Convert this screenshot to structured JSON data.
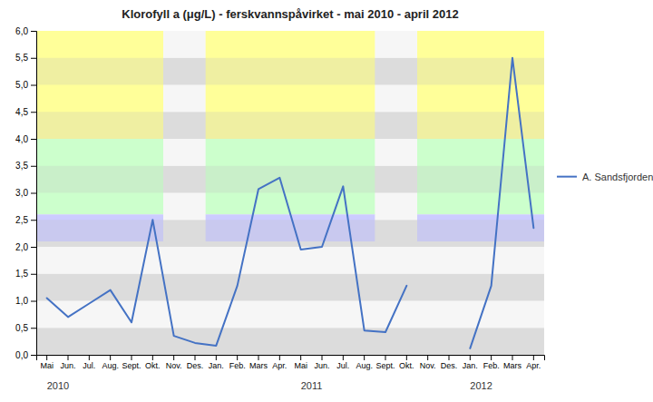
{
  "chart_data": {
    "type": "line",
    "title": "Klorofyll a (μg/L) - ferskvannspåvirket - mai 2010 - april 2012",
    "categories": [
      "Mai",
      "Jun.",
      "Jul.",
      "Aug.",
      "Sept.",
      "Okt.",
      "Nov.",
      "Des.",
      "Jan.",
      "Feb.",
      "Mars",
      "Apr.",
      "Mai",
      "Jun.",
      "Jul.",
      "Aug.",
      "Sept.",
      "Okt.",
      "Nov.",
      "Des.",
      "Jan.",
      "Feb.",
      "Mars",
      "Apr."
    ],
    "series": [
      {
        "name": "A. Sandsfjorden",
        "color": "#4472C4",
        "values": [
          1.05,
          0.7,
          0.95,
          1.2,
          0.6,
          2.5,
          0.35,
          0.22,
          0.17,
          1.28,
          3.07,
          3.28,
          1.95,
          2.0,
          3.12,
          0.45,
          0.42,
          1.28,
          null,
          null,
          0.12,
          1.28,
          5.5,
          2.35
        ]
      }
    ],
    "ylim": [
      0,
      6
    ],
    "yticks": [
      {
        "value": 0,
        "label": "0,0"
      },
      {
        "value": 0.5,
        "label": "0,5"
      },
      {
        "value": 1,
        "label": "1,0"
      },
      {
        "value": 1.5,
        "label": "1,5"
      },
      {
        "value": 2,
        "label": "2,0"
      },
      {
        "value": 2.5,
        "label": "2,5"
      },
      {
        "value": 3,
        "label": "3,0"
      },
      {
        "value": 3.5,
        "label": "3,5"
      },
      {
        "value": 4,
        "label": "4,0"
      },
      {
        "value": 4.5,
        "label": "4,5"
      },
      {
        "value": 5,
        "label": "5,0"
      },
      {
        "value": 5.5,
        "label": "5,5"
      },
      {
        "value": 6,
        "label": "6,0"
      }
    ],
    "grid": true,
    "legend": "right",
    "annotations": [
      {
        "text": "2010",
        "x": 0
      },
      {
        "text": "2011",
        "x": 12
      },
      {
        "text": "2012",
        "x": 20
      }
    ],
    "bands": [
      {
        "from": 4.0,
        "to": 6.0,
        "color": "#FFFF99"
      },
      {
        "from": 2.6,
        "to": 4.0,
        "color": "#CCFFCC"
      },
      {
        "from": 2.1,
        "to": 2.6,
        "color": "#CCCCFF"
      }
    ],
    "band_periods": [
      [
        0,
        5
      ],
      [
        8,
        15
      ],
      [
        18,
        23
      ]
    ]
  }
}
